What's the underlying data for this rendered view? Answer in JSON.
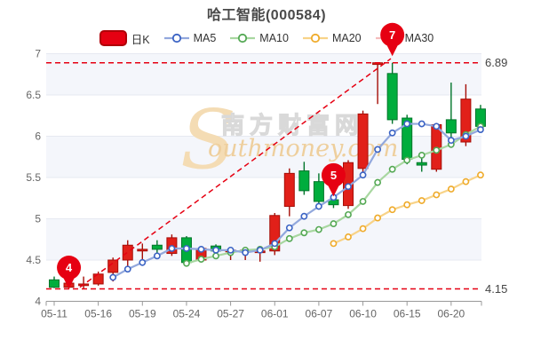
{
  "header": {
    "title": "哈工智能(000584)"
  },
  "legend": {
    "items": [
      {
        "id": "dayk",
        "label": "日K",
        "type": "swatch",
        "color": "#e60012",
        "border": "#b00008"
      },
      {
        "id": "ma5",
        "label": "MA5",
        "type": "line",
        "line": "#92a8dd",
        "marker": "#3b63c4"
      },
      {
        "id": "ma10",
        "label": "MA10",
        "type": "line",
        "line": "#a8d7a0",
        "marker": "#54a854"
      },
      {
        "id": "ma20",
        "label": "MA20",
        "type": "line",
        "line": "#f8d388",
        "marker": "#efab2b"
      },
      {
        "id": "ma30",
        "label": "MA30",
        "type": "line",
        "line": "#f5bcbc",
        "marker": "#ec8f8f"
      }
    ]
  },
  "watermark": {
    "initial": "S",
    "cn": "南方财富网",
    "en": "outhmoney.com"
  },
  "chart_data": {
    "type": "candlestick",
    "title": "哈工智能(000584)",
    "ylim": [
      4,
      7
    ],
    "grid": true,
    "legend_position": "top",
    "y_ticks": [
      {
        "value": 7,
        "label": "7"
      },
      {
        "value": 6.5,
        "label": "6.5"
      },
      {
        "value": 6,
        "label": "6"
      },
      {
        "value": 5.5,
        "label": "5.5"
      },
      {
        "value": 5,
        "label": "5"
      },
      {
        "value": 4.5,
        "label": "4.5"
      },
      {
        "value": 4,
        "label": "4"
      }
    ],
    "band_pairs": [
      [
        7,
        6.5
      ],
      [
        6,
        5.5
      ],
      [
        5,
        4.5
      ]
    ],
    "x_ticks": [
      {
        "index": 0,
        "label": "05-11"
      },
      {
        "index": 3,
        "label": "05-16"
      },
      {
        "index": 6,
        "label": "05-19"
      },
      {
        "index": 9,
        "label": "05-24"
      },
      {
        "index": 12,
        "label": "05-27"
      },
      {
        "index": 15,
        "label": "06-01"
      },
      {
        "index": 18,
        "label": "06-07"
      },
      {
        "index": 21,
        "label": "06-10"
      },
      {
        "index": 24,
        "label": "06-15"
      },
      {
        "index": 27,
        "label": "06-20"
      }
    ],
    "candles": [
      {
        "date": "05-11",
        "o": 4.26,
        "h": 4.3,
        "l": 4.16,
        "c": 4.17
      },
      {
        "date": "05-12",
        "o": 4.17,
        "h": 4.25,
        "l": 4.15,
        "c": 4.22
      },
      {
        "date": "05-13",
        "o": 4.2,
        "h": 4.3,
        "l": 4.15,
        "c": 4.21
      },
      {
        "date": "05-16",
        "o": 4.21,
        "h": 4.36,
        "l": 4.19,
        "c": 4.33
      },
      {
        "date": "05-17",
        "o": 4.35,
        "h": 4.53,
        "l": 4.24,
        "c": 4.5
      },
      {
        "date": "05-18",
        "o": 4.5,
        "h": 4.74,
        "l": 4.41,
        "c": 4.68
      },
      {
        "date": "05-19",
        "o": 4.61,
        "h": 4.7,
        "l": 4.5,
        "c": 4.63
      },
      {
        "date": "05-20",
        "o": 4.68,
        "h": 4.74,
        "l": 4.53,
        "c": 4.63
      },
      {
        "date": "05-23",
        "o": 4.58,
        "h": 4.81,
        "l": 4.55,
        "c": 4.77
      },
      {
        "date": "05-24",
        "o": 4.77,
        "h": 4.79,
        "l": 4.45,
        "c": 4.47
      },
      {
        "date": "05-25",
        "o": 4.5,
        "h": 4.66,
        "l": 4.47,
        "c": 4.64
      },
      {
        "date": "05-26",
        "o": 4.67,
        "h": 4.69,
        "l": 4.58,
        "c": 4.61
      },
      {
        "date": "05-27",
        "o": 4.6,
        "h": 4.65,
        "l": 4.5,
        "c": 4.62
      },
      {
        "date": "05-30",
        "o": 4.6,
        "h": 4.66,
        "l": 4.5,
        "c": 4.62
      },
      {
        "date": "05-31",
        "o": 4.59,
        "h": 4.64,
        "l": 4.48,
        "c": 4.61
      },
      {
        "date": "06-01",
        "o": 4.61,
        "h": 5.07,
        "l": 4.56,
        "c": 5.04
      },
      {
        "date": "06-02",
        "o": 5.15,
        "h": 5.61,
        "l": 5.03,
        "c": 5.55
      },
      {
        "date": "06-06",
        "o": 5.58,
        "h": 5.69,
        "l": 5.29,
        "c": 5.34
      },
      {
        "date": "06-07",
        "o": 5.45,
        "h": 5.55,
        "l": 5.16,
        "c": 5.21
      },
      {
        "date": "06-08",
        "o": 5.23,
        "h": 5.28,
        "l": 5.13,
        "c": 5.17
      },
      {
        "date": "06-09",
        "o": 5.16,
        "h": 5.71,
        "l": 5.12,
        "c": 5.68
      },
      {
        "date": "06-10",
        "o": 5.61,
        "h": 6.31,
        "l": 5.5,
        "c": 6.27
      },
      {
        "date": "06-13",
        "o": 6.87,
        "h": 6.89,
        "l": 6.39,
        "c": 6.89
      },
      {
        "date": "06-14",
        "o": 6.76,
        "h": 6.89,
        "l": 6.15,
        "c": 6.2
      },
      {
        "date": "06-15",
        "o": 6.22,
        "h": 6.26,
        "l": 5.66,
        "c": 5.72
      },
      {
        "date": "06-16",
        "o": 5.68,
        "h": 5.77,
        "l": 5.57,
        "c": 5.65
      },
      {
        "date": "06-17",
        "o": 5.6,
        "h": 6.16,
        "l": 5.57,
        "c": 6.14
      },
      {
        "date": "06-20",
        "o": 6.2,
        "h": 6.65,
        "l": 5.98,
        "c": 6.04
      },
      {
        "date": "06-21",
        "o": 5.93,
        "h": 6.63,
        "l": 5.88,
        "c": 6.45
      },
      {
        "date": "06-22",
        "o": 6.33,
        "h": 6.38,
        "l": 6.08,
        "c": 6.12
      }
    ],
    "series": [
      {
        "name": "MA5",
        "start_index": 4,
        "values": [
          4.29,
          4.39,
          4.47,
          4.55,
          4.64,
          4.64,
          4.63,
          4.62,
          4.62,
          4.59,
          4.62,
          4.7,
          4.89,
          5.03,
          5.15,
          5.26,
          5.39,
          5.53,
          5.84,
          6.04,
          6.15,
          6.15,
          6.12,
          5.95,
          6.0,
          6.08
        ]
      },
      {
        "name": "MA10",
        "start_index": 9,
        "values": [
          4.46,
          4.51,
          4.55,
          4.59,
          4.62,
          4.63,
          4.66,
          4.76,
          4.83,
          4.87,
          4.94,
          5.05,
          5.21,
          5.44,
          5.6,
          5.71,
          5.77,
          5.83,
          5.9,
          6.02,
          6.12
        ]
      },
      {
        "name": "MA20",
        "start_index": 19,
        "values": [
          4.7,
          4.78,
          4.88,
          5.01,
          5.11,
          5.17,
          5.22,
          5.29,
          5.36,
          5.45,
          5.53
        ]
      },
      {
        "name": "MA30",
        "start_index": 29,
        "values": []
      }
    ],
    "hlines": [
      {
        "value": 6.89,
        "label": "6.89"
      },
      {
        "value": 4.15,
        "label": "4.15"
      }
    ],
    "trendline": {
      "from": {
        "index": 1.75,
        "value": 4.17
      },
      "to": {
        "index": 22.9,
        "value": 6.94
      }
    },
    "markers": [
      {
        "label": "4",
        "index": 1,
        "tip_value": 4.15
      },
      {
        "label": "5",
        "index": 19,
        "tip_value": 5.27
      },
      {
        "label": "7",
        "index": 23,
        "tip_value": 6.97
      }
    ],
    "colors": {
      "up_fill": "#e12019",
      "up_stroke": "#a50e07",
      "down_fill": "#00ad3d",
      "down_stroke": "#00752a",
      "dashed": "#e60012",
      "balloon": "#e60012",
      "band": "#f4f6fb",
      "grid": "#e6e9f1",
      "axis": "#999999",
      "tick_text": "#666666",
      "hline_label": "#444444",
      "title": "#4a4a4a",
      "watermark_tan": "#f4dcb4",
      "watermark_text": "#eecf9d",
      "watermark_outline": "#d9d9d9"
    }
  }
}
